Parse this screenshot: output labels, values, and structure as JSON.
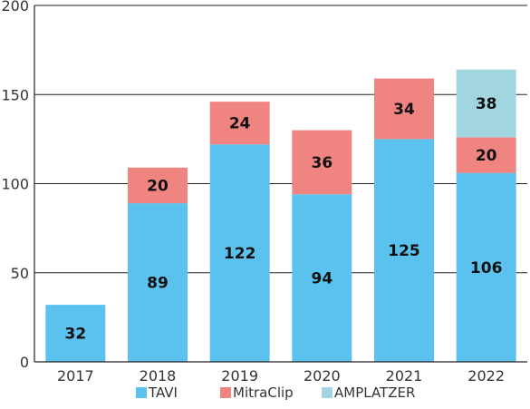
{
  "chart_data": {
    "type": "bar",
    "stacked": true,
    "title": "",
    "xlabel": "",
    "ylabel": "",
    "categories": [
      "2017",
      "2018",
      "2019",
      "2020",
      "2021",
      "2022"
    ],
    "ylim": [
      0,
      200
    ],
    "yticks": [
      0,
      50,
      100,
      150,
      200
    ],
    "grid": true,
    "legend_position": "bottom",
    "series": [
      {
        "name": "TAVI",
        "color": "#5bc1ee",
        "values": [
          32,
          89,
          122,
          94,
          125,
          106
        ]
      },
      {
        "name": "MitraClip",
        "color": "#ef8481",
        "values": [
          0,
          20,
          24,
          36,
          34,
          20
        ]
      },
      {
        "name": "AMPLATZER",
        "color": "#a1d6e0",
        "values": [
          0,
          0,
          0,
          0,
          0,
          38
        ]
      }
    ]
  }
}
